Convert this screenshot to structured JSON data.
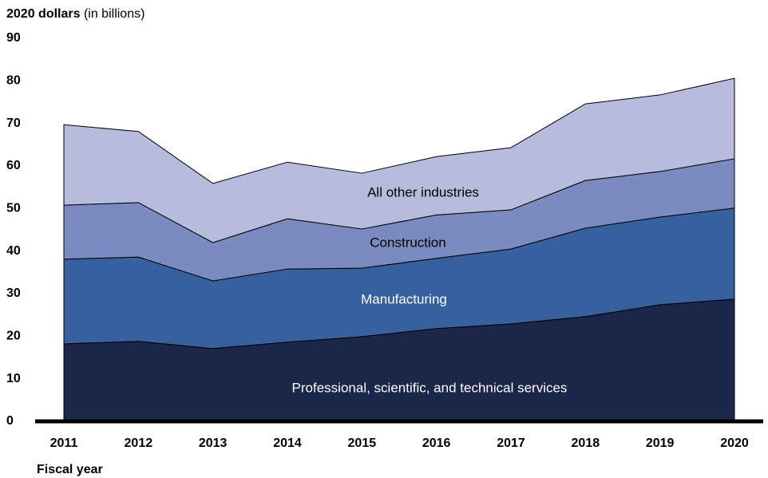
{
  "chart_data": {
    "type": "stacked_area",
    "ylabel": "2020 dollars",
    "ylabel_unit": "(in billions)",
    "xlabel": "Fiscal year",
    "categories": [
      "2011",
      "2012",
      "2013",
      "2014",
      "2015",
      "2016",
      "2017",
      "2018",
      "2019",
      "2020"
    ],
    "ylim": [
      0,
      90
    ],
    "yticks": [
      0,
      10,
      20,
      30,
      40,
      50,
      60,
      70,
      80,
      90
    ],
    "series": [
      {
        "name": "Professional, scientific, and technical services",
        "color": "#1b2649",
        "values": [
          18.2,
          18.8,
          17.1,
          18.6,
          19.9,
          21.8,
          22.9,
          24.6,
          27.4,
          28.7
        ]
      },
      {
        "name": "Manufacturing",
        "color": "#36609e",
        "values": [
          19.9,
          19.8,
          15.9,
          17.2,
          16.1,
          16.5,
          17.6,
          20.8,
          20.6,
          21.4
        ]
      },
      {
        "name": "Construction",
        "color": "#7a8cbf",
        "values": [
          12.7,
          12.8,
          9.0,
          11.8,
          9.2,
          10.2,
          9.2,
          11.2,
          10.7,
          11.6
        ]
      },
      {
        "name": "All other industries",
        "color": "#b7bcdc",
        "values": [
          18.9,
          16.7,
          13.9,
          13.3,
          13.1,
          13.7,
          14.6,
          18.0,
          18.0,
          18.9
        ]
      }
    ]
  }
}
